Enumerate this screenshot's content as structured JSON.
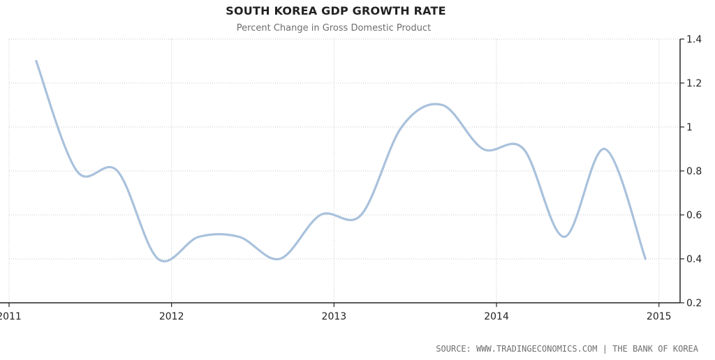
{
  "chart_data": {
    "type": "line",
    "title": "SOUTH KOREA GDP GROWTH RATE",
    "subtitle": "Percent Change in Gross Domestic Product",
    "xlabel": "",
    "ylabel": "",
    "x_ticks": [
      "2011",
      "2012",
      "2013",
      "2014",
      "2015"
    ],
    "y_ticks": [
      "1.4",
      "1.2",
      "1",
      "0.8",
      "0.6",
      "0.4",
      "0.2"
    ],
    "xlim": [
      2011,
      2015.13
    ],
    "ylim": [
      0.2,
      1.4
    ],
    "grid": true,
    "legend": "none",
    "y_axis_side": "right",
    "series": [
      {
        "x": [
          "2011-03",
          "2011-06",
          "2011-09",
          "2011-12",
          "2012-03",
          "2012-06",
          "2012-09",
          "2012-12",
          "2013-03",
          "2013-06",
          "2013-09",
          "2013-12",
          "2014-03",
          "2014-06",
          "2014-09",
          "2014-12"
        ],
        "values": [
          1.3,
          0.8,
          0.8,
          0.4,
          0.5,
          0.5,
          0.4,
          0.6,
          0.6,
          1.0,
          1.1,
          0.9,
          0.9,
          0.5,
          0.9,
          0.4
        ]
      }
    ],
    "colors": {
      "line": "#a9c1dc",
      "grid": "#c8c8c8",
      "axis": "#222222"
    }
  },
  "source": "SOURCE: WWW.TRADINGECONOMICS.COM | THE BANK OF KOREA"
}
